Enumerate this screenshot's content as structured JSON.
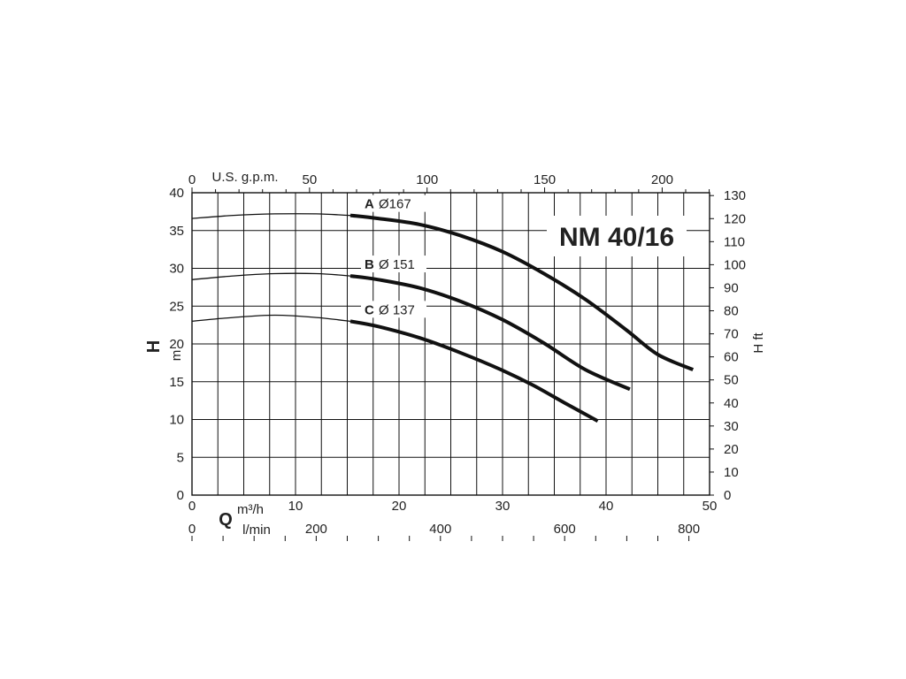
{
  "chart_data": {
    "type": "line",
    "title": "NM 40/16",
    "x_primary": {
      "unit": "m³/h",
      "symbol": "Q",
      "range": [
        0,
        50
      ],
      "ticks": [
        0,
        10,
        20,
        30,
        40,
        50
      ]
    },
    "x_lmin": {
      "unit": "l/min",
      "ticks": [
        0,
        200,
        400,
        600,
        800
      ]
    },
    "x_top": {
      "unit": "U.S. g.p.m.",
      "ticks": [
        0,
        50,
        100,
        150,
        200
      ]
    },
    "y_left": {
      "symbol": "H",
      "unit": "m",
      "range": [
        0,
        40
      ],
      "ticks": [
        0,
        5,
        10,
        15,
        20,
        25,
        30,
        35,
        40
      ]
    },
    "y_right": {
      "label": "H ft",
      "ticks": [
        0,
        10,
        20,
        30,
        40,
        50,
        60,
        70,
        80,
        90,
        100,
        110,
        120,
        130
      ]
    },
    "grid": true,
    "series": [
      {
        "letter": "A",
        "diameter": "Ø167",
        "thin": [
          [
            0,
            36.6
          ],
          [
            4,
            37.0
          ],
          [
            8,
            37.2
          ],
          [
            12,
            37.2
          ],
          [
            15.3,
            37.0
          ]
        ],
        "bold": [
          [
            15.3,
            37.0
          ],
          [
            18,
            36.6
          ],
          [
            22,
            35.8
          ],
          [
            26,
            34.3
          ],
          [
            30,
            32.2
          ],
          [
            34,
            29.3
          ],
          [
            38,
            25.9
          ],
          [
            42,
            21.8
          ],
          [
            45,
            18.6
          ],
          [
            48.4,
            16.6
          ]
        ]
      },
      {
        "letter": "B",
        "diameter": "Ø 151",
        "thin": [
          [
            0,
            28.5
          ],
          [
            4,
            29.0
          ],
          [
            8,
            29.3
          ],
          [
            12,
            29.3
          ],
          [
            15.3,
            29.0
          ]
        ],
        "bold": [
          [
            15.3,
            29.0
          ],
          [
            18,
            28.5
          ],
          [
            22,
            27.4
          ],
          [
            26,
            25.6
          ],
          [
            30,
            23.2
          ],
          [
            34,
            20.1
          ],
          [
            38,
            16.6
          ],
          [
            42.3,
            14.0
          ]
        ]
      },
      {
        "letter": "C",
        "diameter": "Ø 137",
        "thin": [
          [
            0,
            23.0
          ],
          [
            4,
            23.5
          ],
          [
            8,
            23.8
          ],
          [
            12,
            23.5
          ],
          [
            15.3,
            23.0
          ]
        ],
        "bold": [
          [
            15.3,
            23.0
          ],
          [
            18,
            22.3
          ],
          [
            22,
            20.8
          ],
          [
            26,
            18.8
          ],
          [
            30,
            16.5
          ],
          [
            33,
            14.5
          ],
          [
            36,
            12.2
          ],
          [
            39.2,
            9.8
          ]
        ]
      }
    ]
  }
}
